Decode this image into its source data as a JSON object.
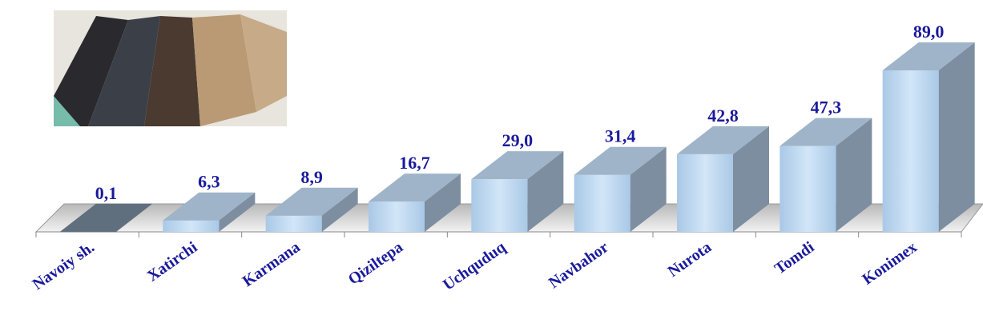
{
  "chart_data": {
    "type": "bar3d",
    "categories": [
      "Navoiy sh.",
      "Xatirchi",
      "Karmana",
      "Qiziltepa",
      "Uchquduq",
      "Navbahor",
      "Nurota",
      "Tomdi",
      "Konimex"
    ],
    "values": [
      0.1,
      6.3,
      8.9,
      16.7,
      29.0,
      31.4,
      42.8,
      47.3,
      89.0
    ],
    "value_labels": [
      "0,1",
      "6,3",
      "8,9",
      "16,7",
      "29,0",
      "31,4",
      "42,8",
      "47,3",
      "89,0"
    ],
    "colors": [
      "#5f6f7e",
      "#bcd7f0",
      "#bcd7f0",
      "#bcd7f0",
      "#bcd7f0",
      "#bcd7f0",
      "#bcd7f0",
      "#bcd7f0",
      "#bcd7f0"
    ]
  }
}
